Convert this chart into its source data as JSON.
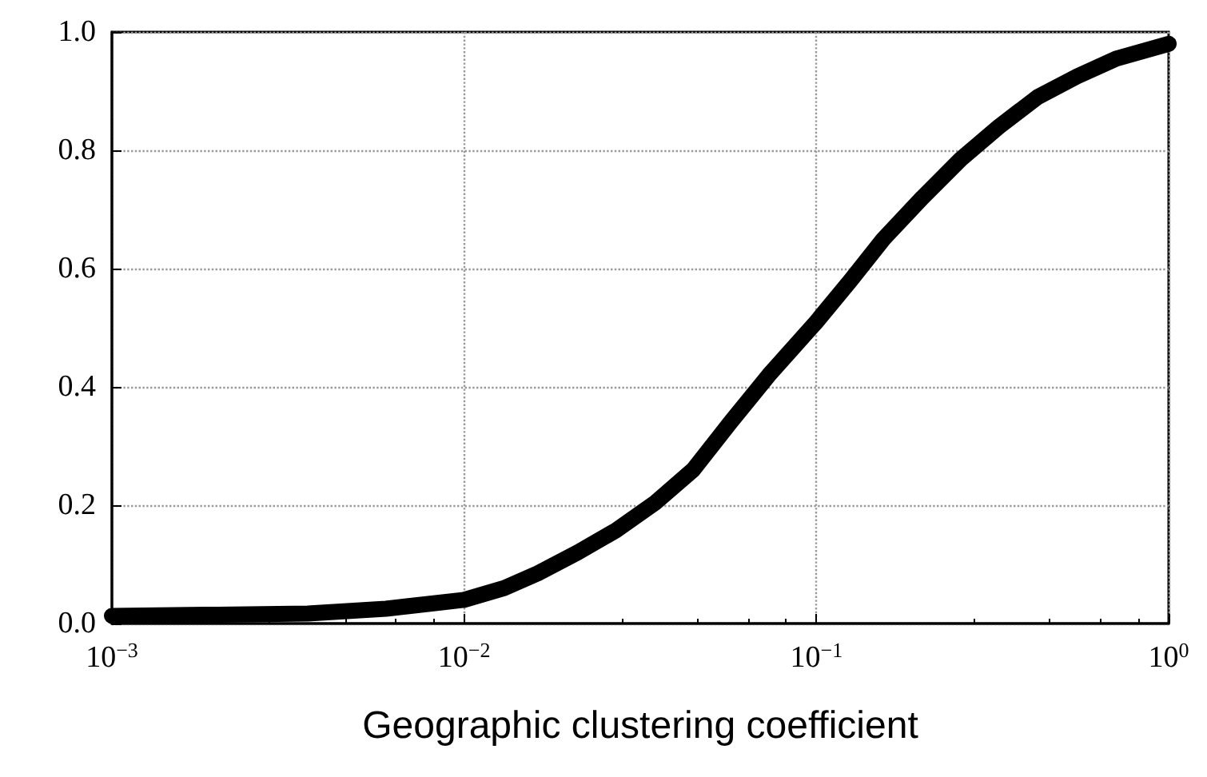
{
  "chart_data": {
    "type": "line",
    "xlabel": "Geographic clustering coefficient",
    "x": [
      0.001,
      0.002,
      0.0036,
      0.006,
      0.01,
      0.013,
      0.0162,
      0.021,
      0.0269,
      0.035,
      0.0447,
      0.057,
      0.0733,
      0.1,
      0.125,
      0.155,
      0.2,
      0.257,
      0.33,
      0.425,
      0.55,
      0.71,
      1
    ],
    "series": [
      {
        "color": "#000000",
        "values": [
          0.013,
          0.015,
          0.017,
          0.025,
          0.04,
          0.06,
          0.085,
          0.12,
          0.157,
          0.205,
          0.26,
          0.34,
          0.42,
          0.51,
          0.58,
          0.65,
          0.72,
          0.785,
          0.84,
          0.89,
          0.925,
          0.955,
          0.98
        ]
      }
    ],
    "log": "x",
    "xlim": [
      0.001,
      1
    ],
    "xticks": [
      {
        "value": 0.001,
        "label": "10$^{−3}$"
      },
      {
        "value": 0.01,
        "label": "10$^{−2}$"
      },
      {
        "value": 0.1,
        "label": "10$^{−1}$"
      },
      {
        "value": 1,
        "label": "10$^{0}$"
      }
    ],
    "ylim": [
      0,
      1
    ],
    "yticks": [
      {
        "value": 0,
        "label": "0.0"
      },
      {
        "value": 0.2,
        "label": "0.2"
      },
      {
        "value": 0.4,
        "label": "0.4"
      },
      {
        "value": 0.6,
        "label": "0.6"
      },
      {
        "value": 0.8,
        "label": "0.8"
      },
      {
        "value": 1,
        "label": "1.0"
      }
    ],
    "grid": true,
    "line_style": "solid"
  }
}
